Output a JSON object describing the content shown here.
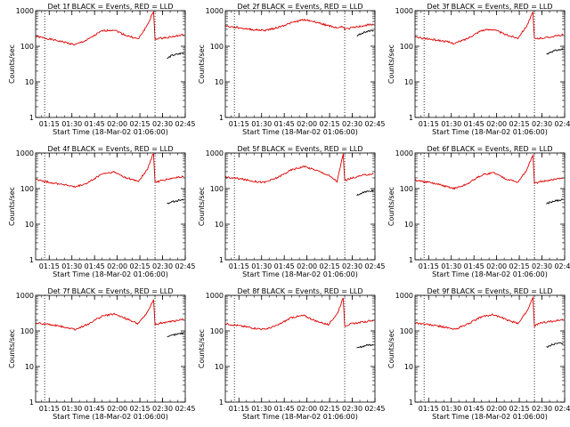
{
  "chart_data": [
    {
      "type": "line",
      "title": "Det 1f  BLACK = Events, RED = LLD",
      "ylabel": "Counts/sec",
      "xlabel": "Start Time (18-Mar-02 01:06:00)",
      "x_ticks": [
        "01:15",
        "01:30",
        "01:45",
        "02:00",
        "02:15",
        "02:30",
        "02:45"
      ],
      "y_ticks": [
        "1",
        "10",
        "100",
        "1000"
      ],
      "yscale": "log",
      "ylim": [
        1,
        1000
      ],
      "xlim": [
        "01:06",
        "02:45"
      ],
      "markers": [
        {
          "time": "01:12"
        },
        {
          "time": "02:25"
        }
      ],
      "series": [
        {
          "color": "#dd0000",
          "x": [
            "01:06",
            "01:15",
            "01:25",
            "01:32",
            "01:40",
            "01:50",
            "01:58",
            "02:06",
            "02:14",
            "02:20",
            "02:24",
            "02:25",
            "02:30",
            "02:38",
            "02:44"
          ],
          "values": [
            190,
            160,
            130,
            110,
            150,
            270,
            290,
            200,
            160,
            400,
            950,
            160,
            170,
            190,
            210
          ]
        },
        {
          "color": "#000000",
          "x": [
            "02:33",
            "02:36",
            "02:40",
            "02:44"
          ],
          "values": [
            45,
            55,
            60,
            65
          ]
        }
      ]
    },
    {
      "type": "line",
      "title": "Det 2f  BLACK = Events, RED = LLD",
      "ylabel": "Counts/sec",
      "xlabel": "Start Time (18-Mar-02 01:06:00)",
      "x_ticks": [
        "01:15",
        "01:30",
        "01:45",
        "02:00",
        "02:15",
        "02:30",
        "02:45"
      ],
      "y_ticks": [
        "1",
        "10",
        "100",
        "1000"
      ],
      "yscale": "log",
      "ylim": [
        1,
        1000
      ],
      "xlim": [
        "01:06",
        "02:45"
      ],
      "markers": [
        {
          "time": "01:12"
        },
        {
          "time": "02:25"
        }
      ],
      "series": [
        {
          "color": "#dd0000",
          "x": [
            "01:06",
            "01:15",
            "01:25",
            "01:32",
            "01:40",
            "01:50",
            "01:58",
            "02:06",
            "02:14",
            "02:20",
            "02:24",
            "02:25",
            "02:30",
            "02:38",
            "02:44"
          ],
          "values": [
            370,
            330,
            290,
            280,
            330,
            460,
            560,
            480,
            380,
            330,
            360,
            300,
            330,
            380,
            420
          ]
        },
        {
          "color": "#000000",
          "x": [
            "02:33",
            "02:36",
            "02:40",
            "02:44"
          ],
          "values": [
            190,
            230,
            260,
            280
          ]
        }
      ]
    },
    {
      "type": "line",
      "title": "Det 3f  BLACK = Events, RED = LLD",
      "ylabel": "Counts/sec",
      "xlabel": "Start Time (18-Mar-02 01:06:00)",
      "x_ticks": [
        "01:15",
        "01:30",
        "01:45",
        "02:00",
        "02:15",
        "02:30",
        "02:45"
      ],
      "y_ticks": [
        "1",
        "10",
        "100",
        "1000"
      ],
      "yscale": "log",
      "ylim": [
        1,
        1000
      ],
      "xlim": [
        "01:06",
        "02:45"
      ],
      "markers": [
        {
          "time": "01:12"
        },
        {
          "time": "02:25"
        }
      ],
      "series": [
        {
          "color": "#dd0000",
          "x": [
            "01:06",
            "01:15",
            "01:25",
            "01:32",
            "01:40",
            "01:50",
            "01:58",
            "02:06",
            "02:14",
            "02:20",
            "02:24",
            "02:25",
            "02:30",
            "02:38",
            "02:44"
          ],
          "values": [
            180,
            160,
            140,
            120,
            160,
            280,
            300,
            210,
            170,
            380,
            900,
            160,
            170,
            190,
            210
          ]
        },
        {
          "color": "#000000",
          "x": [
            "02:33",
            "02:36",
            "02:40",
            "02:44"
          ],
          "values": [
            60,
            70,
            78,
            82
          ]
        }
      ]
    },
    {
      "type": "line",
      "title": "Det 4f  BLACK = Events, RED = LLD",
      "ylabel": "Counts/sec",
      "xlabel": "Start Time (18-Mar-02 01:06:00)",
      "x_ticks": [
        "01:15",
        "01:30",
        "01:45",
        "02:00",
        "02:15",
        "02:30",
        "02:45"
      ],
      "y_ticks": [
        "1",
        "10",
        "100",
        "1000"
      ],
      "yscale": "log",
      "ylim": [
        1,
        1000
      ],
      "xlim": [
        "01:06",
        "02:45"
      ],
      "markers": [
        {
          "time": "01:12"
        },
        {
          "time": "02:25"
        }
      ],
      "series": [
        {
          "color": "#dd0000",
          "x": [
            "01:06",
            "01:15",
            "01:25",
            "01:32",
            "01:40",
            "01:50",
            "01:58",
            "02:06",
            "02:14",
            "02:20",
            "02:24",
            "02:25",
            "02:30",
            "02:38",
            "02:44"
          ],
          "values": [
            180,
            150,
            130,
            110,
            140,
            260,
            290,
            200,
            160,
            350,
            1000,
            150,
            170,
            200,
            220
          ]
        },
        {
          "color": "#000000",
          "x": [
            "02:33",
            "02:36",
            "02:40",
            "02:44"
          ],
          "values": [
            38,
            42,
            46,
            48
          ]
        }
      ]
    },
    {
      "type": "line",
      "title": "Det 5f  BLACK = Events, RED = LLD",
      "ylabel": "Counts/sec",
      "xlabel": "Start Time (18-Mar-02 01:06:00)",
      "x_ticks": [
        "01:15",
        "01:30",
        "01:45",
        "02:00",
        "02:15",
        "02:30",
        "02:45"
      ],
      "y_ticks": [
        "1",
        "10",
        "100",
        "1000"
      ],
      "yscale": "log",
      "ylim": [
        1,
        1000
      ],
      "xlim": [
        "01:06",
        "02:45"
      ],
      "markers": [
        {
          "time": "01:12"
        },
        {
          "time": "02:25"
        }
      ],
      "series": [
        {
          "color": "#dd0000",
          "x": [
            "01:06",
            "01:15",
            "01:25",
            "01:32",
            "01:40",
            "01:50",
            "01:58",
            "02:06",
            "02:14",
            "02:20",
            "02:24",
            "02:25",
            "02:30",
            "02:38",
            "02:44"
          ],
          "values": [
            210,
            190,
            160,
            150,
            200,
            340,
            420,
            330,
            240,
            160,
            950,
            170,
            200,
            240,
            260
          ]
        },
        {
          "color": "#000000",
          "x": [
            "02:33",
            "02:36",
            "02:40",
            "02:44"
          ],
          "values": [
            65,
            75,
            82,
            88
          ]
        }
      ]
    },
    {
      "type": "line",
      "title": "Det 6f  BLACK = Events, RED = LLD",
      "ylabel": "Counts/sec",
      "xlabel": "Start Time (18-Mar-02 01:06:00)",
      "x_ticks": [
        "01:15",
        "01:30",
        "01:45",
        "02:00",
        "02:15",
        "02:30",
        "02:45"
      ],
      "y_ticks": [
        "1",
        "10",
        "100",
        "1000"
      ],
      "yscale": "log",
      "ylim": [
        1,
        1000
      ],
      "xlim": [
        "01:06",
        "02:45"
      ],
      "markers": [
        {
          "time": "01:12"
        },
        {
          "time": "02:25"
        }
      ],
      "series": [
        {
          "color": "#dd0000",
          "x": [
            "01:06",
            "01:15",
            "01:25",
            "01:32",
            "01:40",
            "01:50",
            "01:58",
            "02:06",
            "02:14",
            "02:20",
            "02:24",
            "02:25",
            "02:30",
            "02:38",
            "02:44"
          ],
          "values": [
            170,
            150,
            120,
            100,
            130,
            240,
            280,
            190,
            150,
            330,
            900,
            140,
            160,
            180,
            200
          ]
        },
        {
          "color": "#000000",
          "x": [
            "02:33",
            "02:36",
            "02:40",
            "02:44"
          ],
          "values": [
            38,
            42,
            46,
            48
          ]
        }
      ]
    },
    {
      "type": "line",
      "title": "Det 7f  BLACK = Events, RED = LLD",
      "ylabel": "Counts/sec",
      "xlabel": "Start Time (18-Mar-02 01:06:00)",
      "x_ticks": [
        "01:15",
        "01:30",
        "01:45",
        "02:00",
        "02:15",
        "02:30",
        "02:45"
      ],
      "y_ticks": [
        "1",
        "10",
        "100",
        "1000"
      ],
      "yscale": "log",
      "ylim": [
        1,
        1000
      ],
      "xlim": [
        "01:06",
        "02:45"
      ],
      "markers": [
        {
          "time": "01:12"
        },
        {
          "time": "02:25"
        }
      ],
      "series": [
        {
          "color": "#dd0000",
          "x": [
            "01:06",
            "01:15",
            "01:25",
            "01:32",
            "01:40",
            "01:50",
            "01:58",
            "02:06",
            "02:14",
            "02:20",
            "02:24",
            "02:25",
            "02:30",
            "02:38",
            "02:44"
          ],
          "values": [
            170,
            150,
            130,
            110,
            150,
            260,
            300,
            220,
            160,
            330,
            750,
            150,
            170,
            190,
            210
          ]
        },
        {
          "color": "#000000",
          "x": [
            "02:33",
            "02:36",
            "02:40",
            "02:44"
          ],
          "values": [
            65,
            75,
            82,
            88
          ]
        }
      ]
    },
    {
      "type": "line",
      "title": "Det 8f  BLACK = Events, RED = LLD",
      "ylabel": "Counts/sec",
      "xlabel": "Start Time (18-Mar-02 01:06:00)",
      "x_ticks": [
        "01:15",
        "01:30",
        "01:45",
        "02:00",
        "02:15",
        "02:30",
        "02:45"
      ],
      "y_ticks": [
        "1",
        "10",
        "100",
        "1000"
      ],
      "yscale": "log",
      "ylim": [
        1,
        1000
      ],
      "xlim": [
        "01:06",
        "02:45"
      ],
      "markers": [
        {
          "time": "01:12"
        },
        {
          "time": "02:25"
        }
      ],
      "series": [
        {
          "color": "#dd0000",
          "x": [
            "01:06",
            "01:15",
            "01:25",
            "01:32",
            "01:40",
            "01:50",
            "01:58",
            "02:06",
            "02:14",
            "02:20",
            "02:24",
            "02:25",
            "02:30",
            "02:38",
            "02:44"
          ],
          "values": [
            160,
            140,
            120,
            110,
            140,
            240,
            270,
            190,
            150,
            300,
            850,
            140,
            160,
            180,
            200
          ]
        },
        {
          "color": "#000000",
          "x": [
            "02:33",
            "02:36",
            "02:40",
            "02:44"
          ],
          "values": [
            32,
            36,
            40,
            42
          ]
        }
      ]
    },
    {
      "type": "line",
      "title": "Det 9f  BLACK = Events, RED = LLD",
      "ylabel": "Counts/sec",
      "xlabel": "Start Time (18-Mar-02 01:06:00)",
      "x_ticks": [
        "01:15",
        "01:30",
        "01:45",
        "02:00",
        "02:15",
        "02:30",
        "02:45"
      ],
      "y_ticks": [
        "1",
        "10",
        "100",
        "1000"
      ],
      "yscale": "log",
      "ylim": [
        1,
        1000
      ],
      "xlim": [
        "01:06",
        "02:45"
      ],
      "markers": [
        {
          "time": "01:12"
        },
        {
          "time": "02:25"
        }
      ],
      "series": [
        {
          "color": "#dd0000",
          "x": [
            "01:06",
            "01:15",
            "01:25",
            "01:32",
            "01:40",
            "01:50",
            "01:58",
            "02:06",
            "02:14",
            "02:20",
            "02:24",
            "02:25",
            "02:30",
            "02:38",
            "02:44"
          ],
          "values": [
            170,
            150,
            130,
            110,
            150,
            250,
            290,
            210,
            160,
            360,
            850,
            140,
            170,
            190,
            210
          ]
        },
        {
          "color": "#000000",
          "x": [
            "02:33",
            "02:36",
            "02:40",
            "02:44"
          ],
          "values": [
            36,
            40,
            44,
            46
          ]
        }
      ]
    }
  ]
}
